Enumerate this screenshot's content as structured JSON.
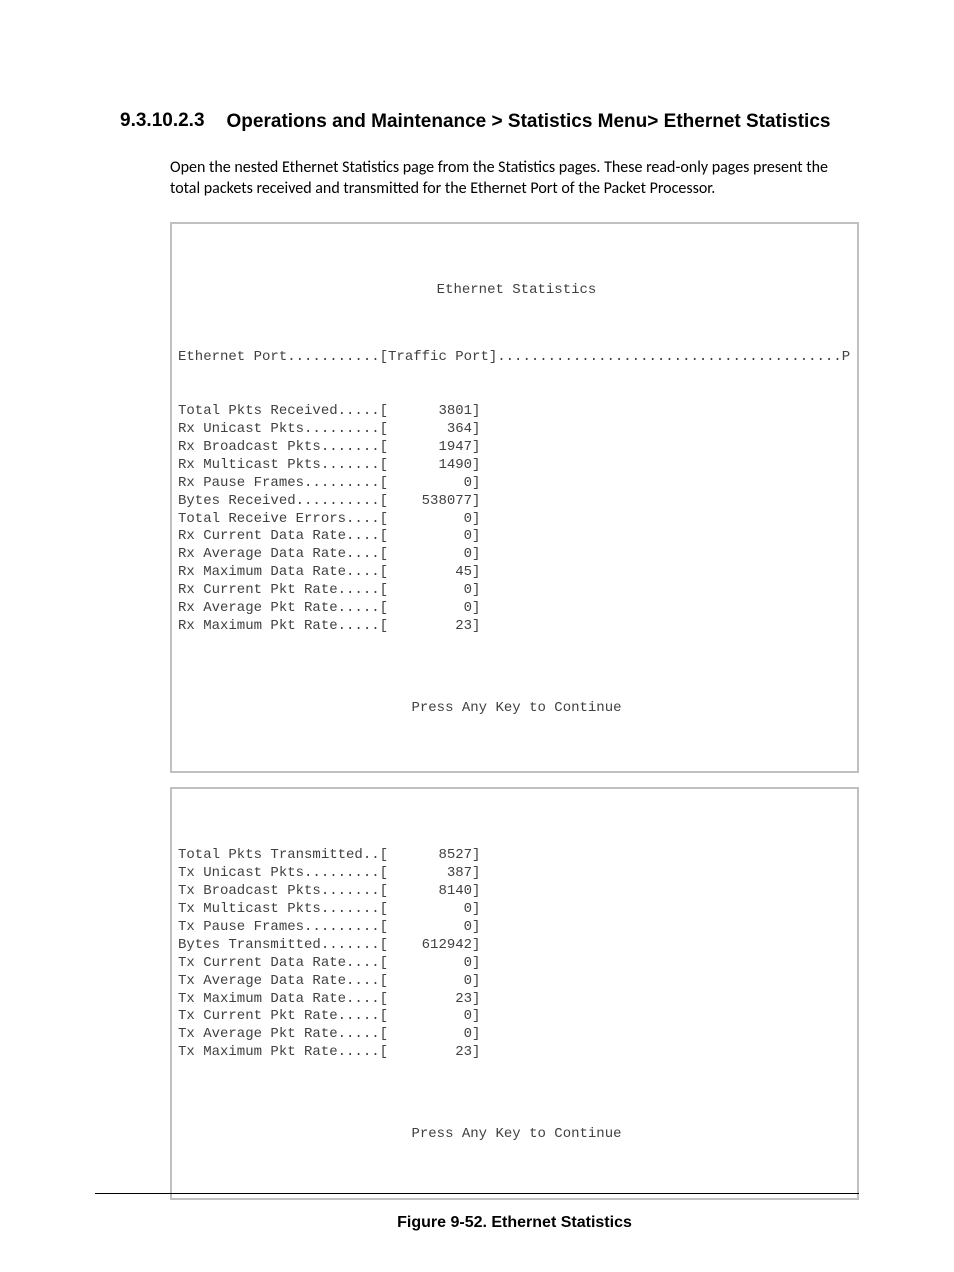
{
  "heading": {
    "number": "9.3.10.2.3",
    "title": "Operations and Maintenance > Statistics Menu> Ethernet Statistics"
  },
  "paragraph": "Open the nested Ethernet Statistics page from the Statistics pages. These read-only pages present the total packets received and transmitted for the Ethernet Port of the Packet Processor.",
  "terminal1": {
    "title": "Ethernet Statistics",
    "port_line": "Ethernet Port...........[Traffic Port].........................................P",
    "stats": [
      {
        "label": "Total Pkts Received",
        "dots": ".....",
        "value": "3801"
      },
      {
        "label": "Rx Unicast Pkts",
        "dots": ".........",
        "value": "364"
      },
      {
        "label": "Rx Broadcast Pkts",
        "dots": ".......",
        "value": "1947"
      },
      {
        "label": "Rx Multicast Pkts",
        "dots": ".......",
        "value": "1490"
      },
      {
        "label": "Rx Pause Frames",
        "dots": ".........",
        "value": "0"
      },
      {
        "label": "Bytes Received",
        "dots": "..........",
        "value": "538077"
      },
      {
        "label": "Total Receive Errors",
        "dots": "....",
        "value": "0"
      },
      {
        "label": "Rx Current Data Rate",
        "dots": "....",
        "value": "0"
      },
      {
        "label": "Rx Average Data Rate",
        "dots": "....",
        "value": "0"
      },
      {
        "label": "Rx Maximum Data Rate",
        "dots": "....",
        "value": "45"
      },
      {
        "label": "Rx Current Pkt Rate",
        "dots": ".....",
        "value": "0"
      },
      {
        "label": "Rx Average Pkt Rate",
        "dots": ".....",
        "value": "0"
      },
      {
        "label": "Rx Maximum Pkt Rate",
        "dots": ".....",
        "value": "23"
      }
    ],
    "prompt": "Press Any Key to Continue"
  },
  "terminal2": {
    "stats": [
      {
        "label": "Total Pkts Transmitted",
        "dots": "..",
        "value": "8527"
      },
      {
        "label": "Tx Unicast Pkts",
        "dots": ".........",
        "value": "387"
      },
      {
        "label": "Tx Broadcast Pkts",
        "dots": ".......",
        "value": "8140"
      },
      {
        "label": "Tx Multicast Pkts",
        "dots": ".......",
        "value": "0"
      },
      {
        "label": "Tx Pause Frames",
        "dots": ".........",
        "value": "0"
      },
      {
        "label": "Bytes Transmitted",
        "dots": ".......",
        "value": "612942"
      },
      {
        "label": "Tx Current Data Rate",
        "dots": "....",
        "value": "0"
      },
      {
        "label": "Tx Average Data Rate",
        "dots": "....",
        "value": "0"
      },
      {
        "label": "Tx Maximum Data Rate",
        "dots": "....",
        "value": "23"
      },
      {
        "label": "Tx Current Pkt Rate",
        "dots": ".....",
        "value": "0"
      },
      {
        "label": "Tx Average Pkt Rate",
        "dots": ".....",
        "value": "0"
      },
      {
        "label": "Tx Maximum Pkt Rate",
        "dots": ".....",
        "value": "23"
      }
    ],
    "prompt": "Press Any Key to Continue"
  },
  "figure_caption": "Figure 9-52. Ethernet Statistics",
  "layout": {
    "value_field_width": 10
  }
}
